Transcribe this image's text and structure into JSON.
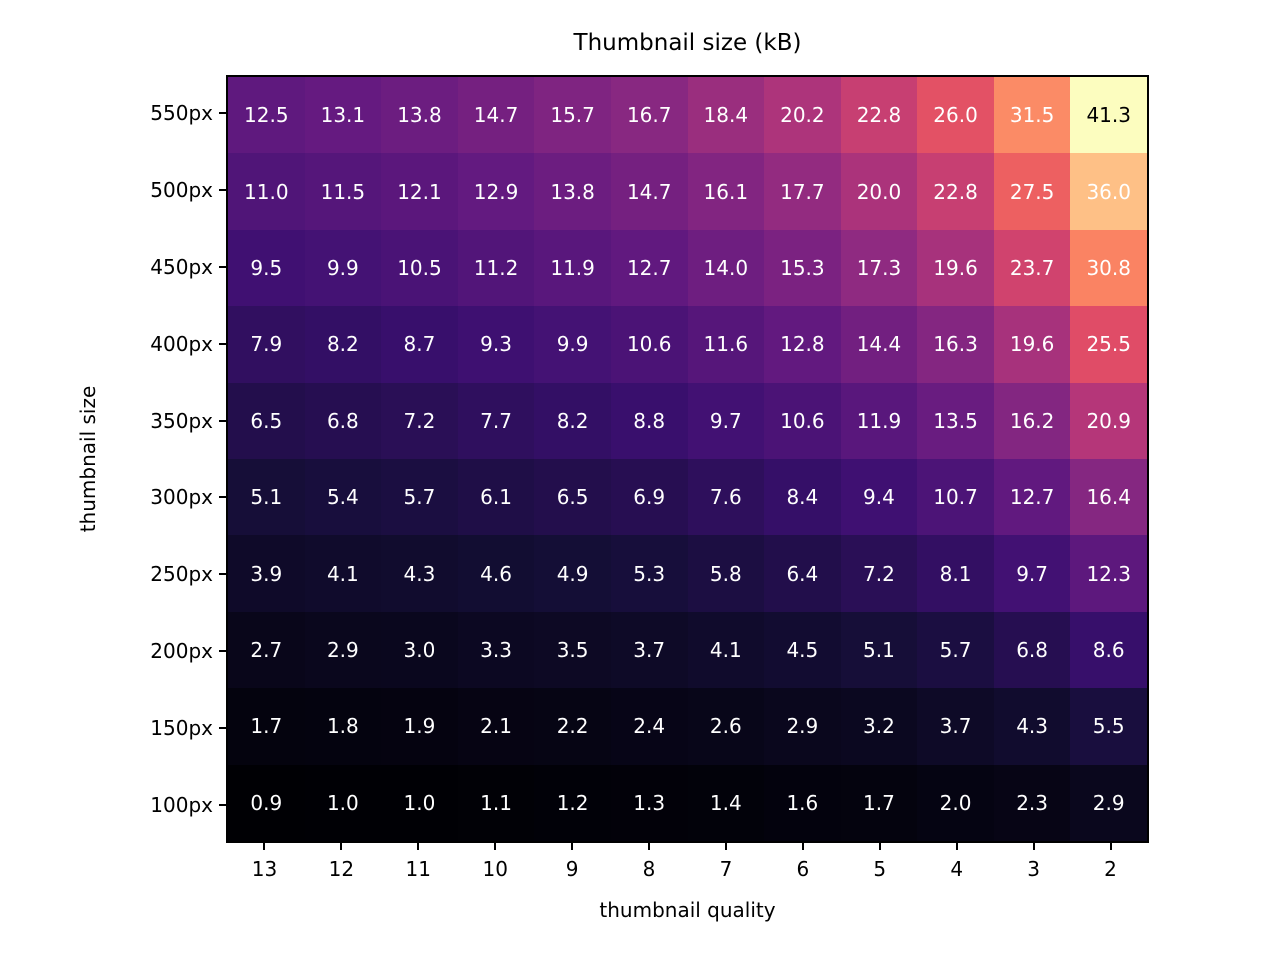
{
  "chart_data": {
    "type": "heatmap",
    "title": "Thumbnail size (kB)",
    "xlabel": "thumbnail quality",
    "ylabel": "thumbnail size",
    "x_tick_labels": [
      "13",
      "12",
      "11",
      "10",
      "9",
      "8",
      "7",
      "6",
      "5",
      "4",
      "3",
      "2"
    ],
    "y_tick_labels": [
      "550px",
      "500px",
      "450px",
      "400px",
      "350px",
      "300px",
      "250px",
      "200px",
      "150px",
      "100px"
    ],
    "values": [
      [
        12.5,
        13.1,
        13.8,
        14.7,
        15.7,
        16.7,
        18.4,
        20.2,
        22.8,
        26.0,
        31.5,
        41.3
      ],
      [
        11.0,
        11.5,
        12.1,
        12.9,
        13.8,
        14.7,
        16.1,
        17.7,
        20.0,
        22.8,
        27.5,
        36.0
      ],
      [
        9.5,
        9.9,
        10.5,
        11.2,
        11.9,
        12.7,
        14.0,
        15.3,
        17.3,
        19.6,
        23.7,
        30.8
      ],
      [
        7.9,
        8.2,
        8.7,
        9.3,
        9.9,
        10.6,
        11.6,
        12.8,
        14.4,
        16.3,
        19.6,
        25.5
      ],
      [
        6.5,
        6.8,
        7.2,
        7.7,
        8.2,
        8.8,
        9.7,
        10.6,
        11.9,
        13.5,
        16.2,
        20.9
      ],
      [
        5.1,
        5.4,
        5.7,
        6.1,
        6.5,
        6.9,
        7.6,
        8.4,
        9.4,
        10.7,
        12.7,
        16.4
      ],
      [
        3.9,
        4.1,
        4.3,
        4.6,
        4.9,
        5.3,
        5.8,
        6.4,
        7.2,
        8.1,
        9.7,
        12.3
      ],
      [
        2.7,
        2.9,
        3.0,
        3.3,
        3.5,
        3.7,
        4.1,
        4.5,
        5.1,
        5.7,
        6.8,
        8.6
      ],
      [
        1.7,
        1.8,
        1.9,
        2.1,
        2.2,
        2.4,
        2.6,
        2.9,
        3.2,
        3.7,
        4.3,
        5.5
      ],
      [
        0.9,
        1.0,
        1.0,
        1.1,
        1.2,
        1.3,
        1.4,
        1.6,
        1.7,
        2.0,
        2.3,
        2.9
      ]
    ],
    "value_format_decimals": 1,
    "colormap": "magma",
    "vmin": 0.9,
    "vmax": 41.3,
    "legend": "none",
    "grid": "off",
    "colors": {
      "background": "#ffffff",
      "axes_border": "#000000",
      "cell_text_light": "#ffffff",
      "cell_text_dark": "#000000",
      "dark_text_threshold": 0.92,
      "magma_stops": [
        "#000004",
        "#140e36",
        "#3b0f70",
        "#641a80",
        "#8c2981",
        "#b73779",
        "#de4968",
        "#f7705c",
        "#fe9f6d",
        "#fecf92",
        "#fcfdbf"
      ]
    }
  }
}
